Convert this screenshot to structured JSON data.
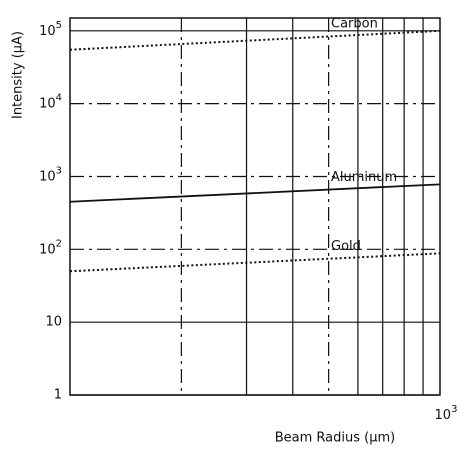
{
  "chart_data": {
    "type": "line",
    "xlabel": "Beam Radius (μm)",
    "ylabel": "Intensity (μA)",
    "xscale": "log",
    "yscale": "log",
    "xlim": [
      100,
      1000
    ],
    "ylim": [
      1,
      150000
    ],
    "xticks": [
      {
        "value": 1000,
        "label": "10^3"
      }
    ],
    "xminor": [
      200,
      300,
      400,
      500,
      600,
      700,
      800,
      900
    ],
    "yticks": [
      1,
      10,
      {
        "value": 100,
        "label": "10^2"
      },
      {
        "value": 1000,
        "label": "10^3"
      },
      {
        "value": 10000,
        "label": "10^4"
      },
      {
        "value": 100000,
        "label": "10^5"
      }
    ],
    "grid": true,
    "x": [
      100,
      1000
    ],
    "series": [
      {
        "name": "Carbon",
        "color": "#111",
        "style": "dotted",
        "values": [
          55000,
          100000
        ]
      },
      {
        "name": "Aluminum",
        "color": "#111",
        "style": "solid",
        "values": [
          450,
          780
        ]
      },
      {
        "name": "Gold",
        "color": "#111",
        "style": "dotted",
        "values": [
          50,
          88
        ]
      }
    ]
  }
}
